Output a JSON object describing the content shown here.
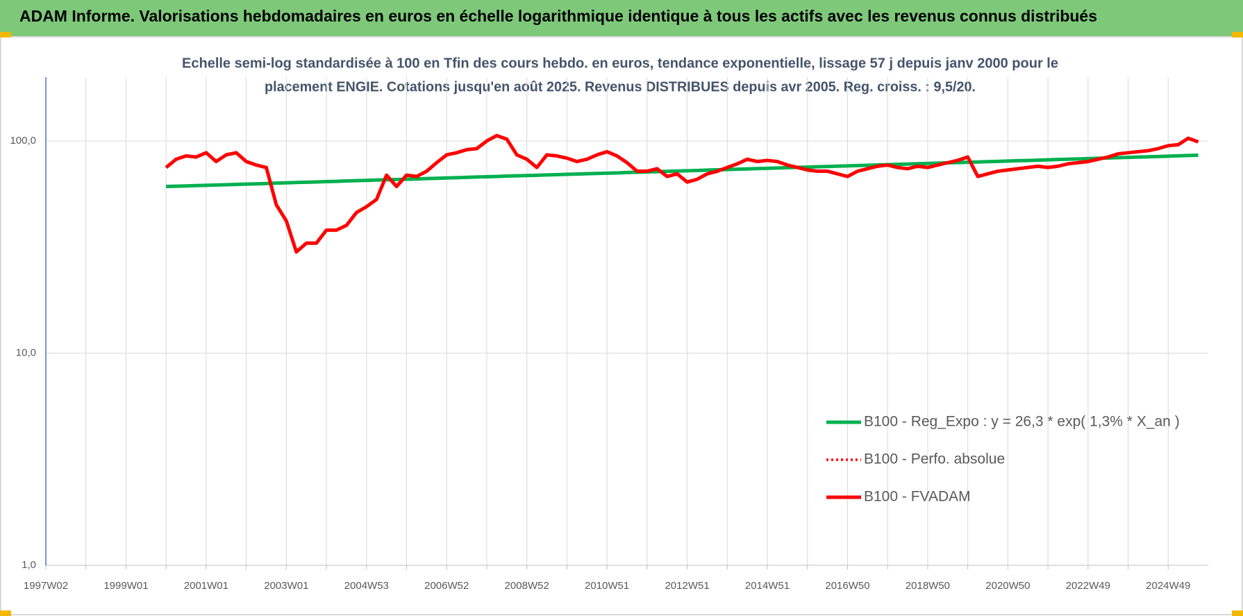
{
  "chart_data": {
    "type": "line",
    "title": "ADAM Informe. Valorisations hebdomadaires en euros en échelle logarithmique identique à tous les actifs avec les revenus connus distribués",
    "subtitle": [
      "Echelle semi-log standardisée à 100 en Tfin des cours hebdo. en euros, tendance exponentielle, lissage 57 j depuis janv 2000 pour le",
      "placement ENGIE. Cotations jusqu'en août 2025. Revenus DISTRIBUES depuis avr 2005. Reg. croiss. : 9,5/20."
    ],
    "log_scale": true,
    "grid": true,
    "legend": "right",
    "ylim": [
      1,
      200
    ],
    "yticks": [
      {
        "value": 1,
        "label": "1,0"
      },
      {
        "value": 10,
        "label": "10,0"
      },
      {
        "value": 100,
        "label": "100,0"
      }
    ],
    "categories": [
      "1997W02",
      null,
      null,
      null,
      null,
      null,
      null,
      null,
      "1999W01",
      null,
      null,
      null,
      null,
      null,
      null,
      null,
      "2001W01",
      null,
      null,
      null,
      null,
      null,
      null,
      null,
      "2003W01",
      null,
      null,
      null,
      null,
      null,
      null,
      null,
      "2004W53",
      null,
      null,
      null,
      null,
      null,
      null,
      null,
      "2006W52",
      null,
      null,
      null,
      null,
      null,
      null,
      null,
      "2008W52",
      null,
      null,
      null,
      null,
      null,
      null,
      null,
      "2010W51",
      null,
      null,
      null,
      null,
      null,
      null,
      null,
      "2012W51",
      null,
      null,
      null,
      null,
      null,
      null,
      null,
      "2014W51",
      null,
      null,
      null,
      null,
      null,
      null,
      null,
      "2016W50",
      null,
      null,
      null,
      null,
      null,
      null,
      null,
      "2018W50",
      null,
      null,
      null,
      null,
      null,
      null,
      null,
      "2020W50",
      null,
      null,
      null,
      null,
      null,
      null,
      null,
      "2022W49",
      null,
      null,
      null,
      null,
      null,
      null,
      null,
      "2024W49",
      null,
      null,
      null
    ],
    "series": [
      {
        "name": "B100 - Reg_Expo : y = 26,3 * exp( 1,3% *  X_an )",
        "color": "#00b050",
        "dash": "solid",
        "values": [
          null,
          null,
          null,
          null,
          null,
          null,
          null,
          null,
          null,
          null,
          null,
          null,
          61.0,
          61.2,
          61.4,
          61.6,
          61.8,
          62.0,
          62.2,
          62.4,
          62.6,
          62.8,
          63.0,
          63.3,
          63.5,
          63.7,
          63.9,
          64.1,
          64.3,
          64.5,
          64.8,
          65.0,
          65.2,
          65.4,
          65.6,
          65.8,
          66.0,
          66.2,
          66.5,
          66.7,
          66.9,
          67.1,
          67.4,
          67.6,
          67.8,
          68.0,
          68.3,
          68.5,
          68.7,
          68.9,
          69.2,
          69.4,
          69.6,
          69.8,
          70.1,
          70.3,
          70.5,
          70.7,
          71.0,
          71.2,
          71.4,
          71.7,
          71.9,
          72.2,
          72.4,
          72.6,
          72.9,
          73.1,
          73.3,
          73.6,
          73.8,
          74.1,
          74.3,
          74.6,
          74.8,
          75.1,
          75.3,
          75.6,
          75.8,
          76.1,
          76.3,
          76.6,
          76.8,
          77.1,
          77.3,
          77.6,
          77.8,
          78.1,
          78.3,
          78.6,
          78.9,
          79.1,
          79.4,
          79.6,
          79.9,
          80.1,
          80.4,
          80.7,
          80.9,
          81.2,
          81.5,
          81.8,
          82.0,
          82.3,
          82.6,
          82.9,
          83.1,
          83.4,
          83.7,
          84.0,
          84.2,
          84.5,
          84.8,
          85.1,
          85.4,
          85.7
        ]
      },
      {
        "name": "B100 - Perfo. absolue",
        "color": "#ff0000",
        "dash": "dotted",
        "values": [
          null,
          null,
          null,
          null,
          null,
          null,
          null,
          null,
          null,
          null,
          null,
          null,
          null,
          null,
          null,
          null,
          null,
          null,
          null,
          null,
          null,
          null,
          null,
          null,
          null,
          null,
          null,
          null,
          null,
          null,
          null,
          null,
          null,
          null,
          null,
          null,
          null,
          null,
          null,
          null,
          null,
          null,
          null,
          null,
          null,
          null,
          null,
          null,
          null,
          null,
          null,
          null,
          null,
          null,
          null,
          null,
          null,
          null,
          null,
          null,
          null,
          null,
          null,
          null,
          null,
          null,
          null,
          null,
          null,
          null,
          null,
          null,
          null,
          null,
          null,
          null,
          null,
          null,
          null,
          null,
          null,
          null,
          null,
          null,
          null,
          null,
          null,
          null,
          null,
          null,
          null,
          null,
          null,
          null,
          null,
          null,
          null,
          null,
          null,
          null,
          null,
          null,
          null,
          null,
          null,
          null,
          null,
          null,
          null,
          null,
          null,
          null,
          null,
          null,
          null,
          null
        ]
      },
      {
        "name": "B100 - FVADAM",
        "color": "#ff0000",
        "dash": "solid",
        "values": [
          null,
          null,
          null,
          null,
          null,
          null,
          null,
          null,
          null,
          null,
          null,
          null,
          75,
          82,
          85,
          84,
          88,
          80,
          86,
          88,
          80,
          77,
          75,
          50,
          42,
          30,
          33,
          33,
          38,
          38,
          40,
          46,
          49,
          53,
          69,
          61,
          69,
          68,
          72,
          79,
          86,
          88,
          91,
          92,
          100,
          106,
          102,
          86,
          82,
          75,
          86,
          85,
          83,
          80,
          82,
          86,
          89,
          85,
          79,
          72,
          72,
          74,
          68,
          70,
          64,
          66,
          70,
          72,
          75,
          78,
          82,
          80,
          81,
          80,
          77,
          75,
          73,
          72,
          72,
          70,
          68,
          72,
          74,
          76,
          77,
          75,
          74,
          76,
          75,
          77,
          79,
          81,
          84,
          68,
          70,
          72,
          73,
          74,
          75,
          76,
          75,
          76,
          78,
          79,
          80,
          82,
          84,
          87,
          88,
          89,
          90,
          92,
          95,
          96,
          103,
          99
        ]
      }
    ]
  }
}
